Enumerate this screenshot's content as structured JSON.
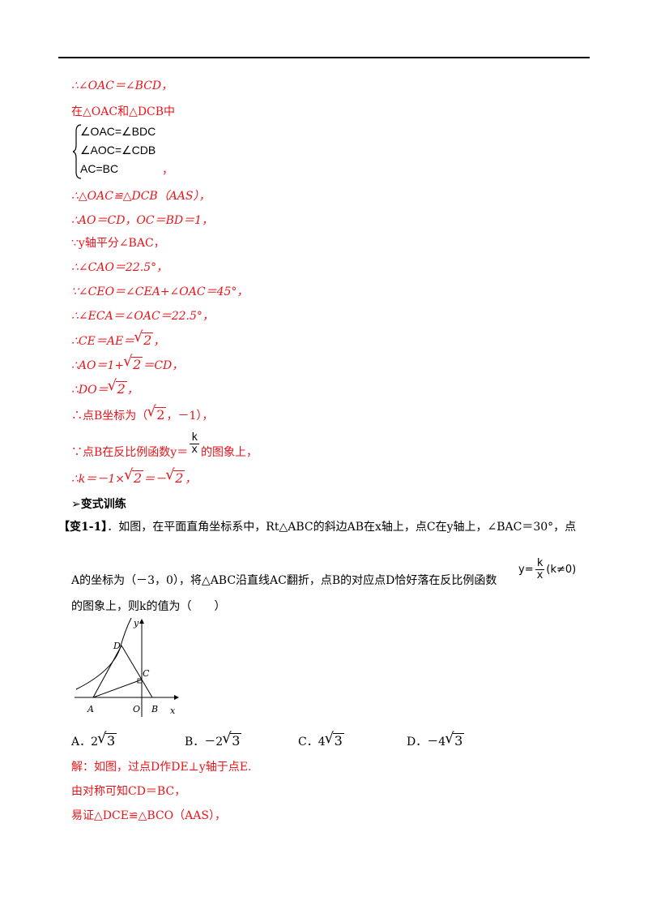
{
  "solution_lines": [
    "∴∠OAC＝∠BCD，",
    "在△OAC和△DCB中",
    "，",
    "∴△OAC≌△DCB（AAS），",
    "∴AO＝CD，OC＝BD＝1，",
    "∵y轴平分∠BAC，",
    "∴∠CAO＝22.5°，",
    "∵∠CEO＝∠CEA+∠OAC＝45°，",
    "∴∠ECA＝∠OAC＝22.5°，",
    "∴CE＝AE＝",
    "∴AO＝1+",
    "＝CD，",
    "∴DO＝",
    "，",
    "∴点B坐标为（",
    "，－1），",
    "∵点B在反比例函数y＝",
    "的图象上，",
    "∴k＝－1×",
    "＝－",
    "，"
  ],
  "system": [
    "∠OAC=∠BDC",
    "∠AOC=∠CDB",
    "AC=BC"
  ],
  "sqrt_arg": "2",
  "frac_k": {
    "num": "k",
    "den": "x"
  },
  "section_heading": "➢变式训练",
  "problem": {
    "label": "【变1-1】",
    "line1": "．如图，在平面直角坐标系中，Rt△ABC的斜边AB在x轴上，点C在y轴上，∠BAC＝30°，点",
    "line2": "A的坐标为（－3，0），将△ABC沿直线AC翻折，点B的对应点D恰好落在反比例函数",
    "formula_y": "y=",
    "formula_cond": "(k≠0)",
    "line3": "的图象上，则k的值为（　　）"
  },
  "figure_labels": {
    "y": "y",
    "x": "x",
    "D": "D",
    "C": "C",
    "A": "A",
    "O": "O",
    "B": "B"
  },
  "options": [
    {
      "letter": "A．",
      "coef": "2",
      "arg": "3"
    },
    {
      "letter": "B．",
      "coef": "－2",
      "arg": "3"
    },
    {
      "letter": "C．",
      "coef": "4",
      "arg": "3"
    },
    {
      "letter": "D．",
      "coef": "－4",
      "arg": "3"
    }
  ],
  "answer_lines": [
    "解：如图，过点D作DE⊥y轴于点E.",
    "由对称可知CD＝BC，",
    "易证△DCE≌△BCO（AAS），"
  ],
  "colors": {
    "answer": "#e8141a"
  }
}
